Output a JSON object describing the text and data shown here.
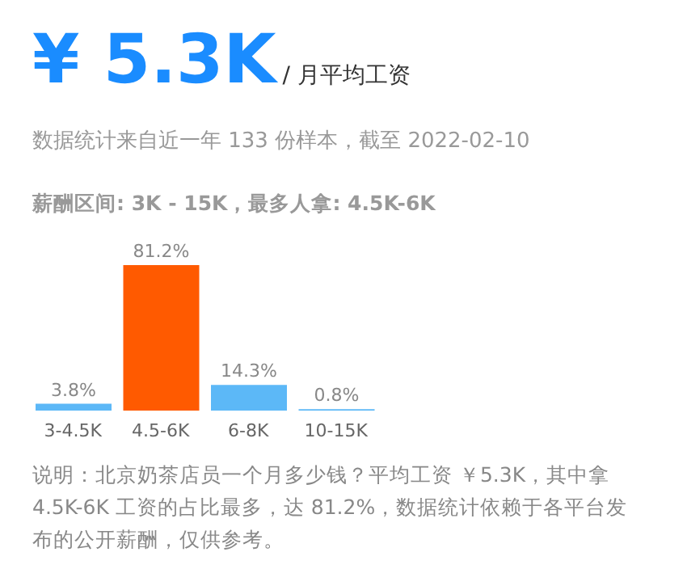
{
  "chart_data": {
    "type": "bar",
    "title": "¥ 5.3K",
    "subtitle": "/ 月平均工资",
    "annotations": [
      "数据统计来自近一年 133 份样本，截至 2022-02-10",
      "薪酬区间: 3K - 15K，最多人拿: 4.5K-6K",
      "说明：北京奶茶店员一个月多少钱？平均工资 ￥5.3K，其中拿 4.5K-6K 工资的占比最多，达 81.2%，数据统计依赖于各平台发布的公开薪酬，仅供参考。"
    ],
    "categories": [
      "3-4.5K",
      "4.5-6K",
      "6-8K",
      "10-15K"
    ],
    "values": [
      3.8,
      81.2,
      14.3,
      0.8
    ],
    "colors": [
      "#5cb8f7",
      "#ff5a00",
      "#5cb8f7",
      "#5cb8f7"
    ],
    "value_labels": [
      "3.8%",
      "81.2%",
      "14.3%",
      "0.8%"
    ],
    "grid": false,
    "legend": false
  }
}
